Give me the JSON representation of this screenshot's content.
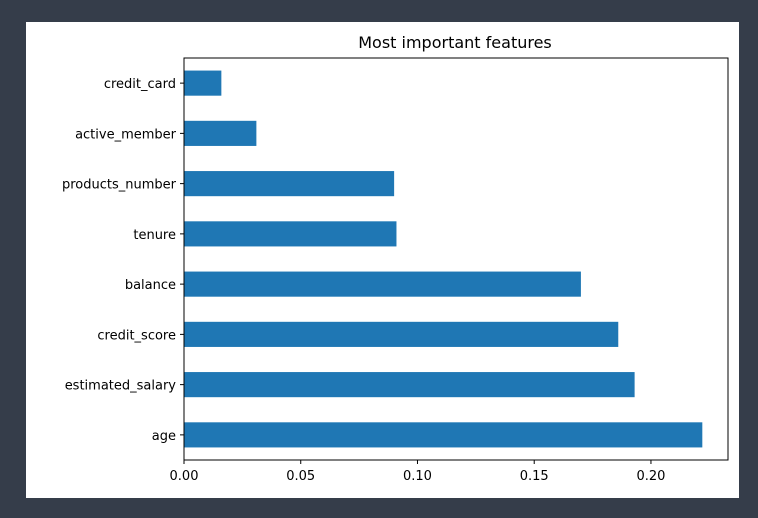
{
  "chart_data": {
    "type": "bar",
    "orientation": "horizontal",
    "title": "Most important features",
    "xlabel": "",
    "ylabel": "",
    "categories": [
      "age",
      "estimated_salary",
      "credit_score",
      "balance",
      "tenure",
      "products_number",
      "active_member",
      "credit_card"
    ],
    "values": [
      0.222,
      0.193,
      0.186,
      0.17,
      0.091,
      0.09,
      0.031,
      0.016
    ],
    "xlim": [
      0,
      0.233
    ],
    "xticks": [
      0.0,
      0.05,
      0.1,
      0.15,
      0.2
    ],
    "xtick_labels": [
      "0.00",
      "0.05",
      "0.10",
      "0.15",
      "0.20"
    ],
    "bar_color": "#1f77b4",
    "grid": false,
    "legend": "none"
  }
}
